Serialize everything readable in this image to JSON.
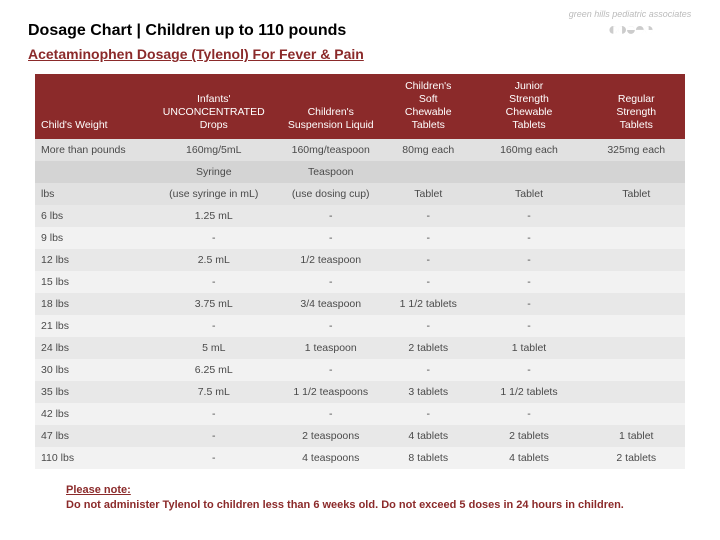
{
  "header": {
    "title": "Dosage Chart  |  Children up to 110 pounds",
    "subtitle": "Acetaminophen Dosage (Tylenol) For Fever & Pain",
    "logo_text": "green hills pediatric associates"
  },
  "colors": {
    "brand": "#8b2a2a",
    "row_a": "#f2f2f2",
    "row_b": "#e8e8e8",
    "meta_a": "#e1e1e1",
    "meta_b": "#d4d4d4"
  },
  "table": {
    "columns": [
      "Child's Weight",
      "Infants' UNCONCENTRATED Drops",
      "Children's Suspension Liquid",
      "Children's Soft Chewable Tablets",
      "Junior Strength Chewable Tablets",
      "Regular Strength Tablets"
    ],
    "col_widths_pct": [
      18,
      19,
      17,
      13,
      18,
      15
    ],
    "meta_rows": [
      [
        "More than pounds",
        "160mg/5mL",
        "160mg/teaspoon",
        "80mg each",
        "160mg each",
        "325mg each"
      ],
      [
        "",
        "Syringe",
        "Teaspoon",
        "",
        "",
        ""
      ],
      [
        "lbs",
        "(use syringe in mL)",
        "(use dosing cup)",
        "Tablet",
        "Tablet",
        "Tablet"
      ]
    ],
    "rows": [
      [
        "6 lbs",
        "1.25 mL",
        "-",
        "-",
        "-",
        ""
      ],
      [
        "9 lbs",
        "-",
        "-",
        "-",
        "-",
        ""
      ],
      [
        "12 lbs",
        "2.5 mL",
        "1/2 teaspoon",
        "-",
        "-",
        ""
      ],
      [
        "15 lbs",
        "-",
        "-",
        "-",
        "-",
        ""
      ],
      [
        "18 lbs",
        "3.75 mL",
        "3/4 teaspoon",
        "1 1/2 tablets",
        "-",
        ""
      ],
      [
        "21 lbs",
        "-",
        "-",
        "-",
        "-",
        ""
      ],
      [
        "24 lbs",
        "5 mL",
        "1 teaspoon",
        "2 tablets",
        "1 tablet",
        ""
      ],
      [
        "30 lbs",
        "6.25 mL",
        "-",
        "-",
        "-",
        ""
      ],
      [
        "35 lbs",
        "7.5 mL",
        "1 1/2 teaspoons",
        "3 tablets",
        "1 1/2 tablets",
        ""
      ],
      [
        "42 lbs",
        "-",
        "-",
        "-",
        "-",
        ""
      ],
      [
        "47 lbs",
        "-",
        "2 teaspoons",
        "4 tablets",
        "2 tablets",
        "1 tablet"
      ],
      [
        "110 lbs",
        "-",
        "4 teaspoons",
        "8 tablets",
        "4 tablets",
        "2 tablets"
      ]
    ]
  },
  "note": {
    "label": "Please note: ",
    "body": "Do not administer Tylenol to children less than 6 weeks old. Do not exceed 5 doses in 24 hours in children."
  }
}
